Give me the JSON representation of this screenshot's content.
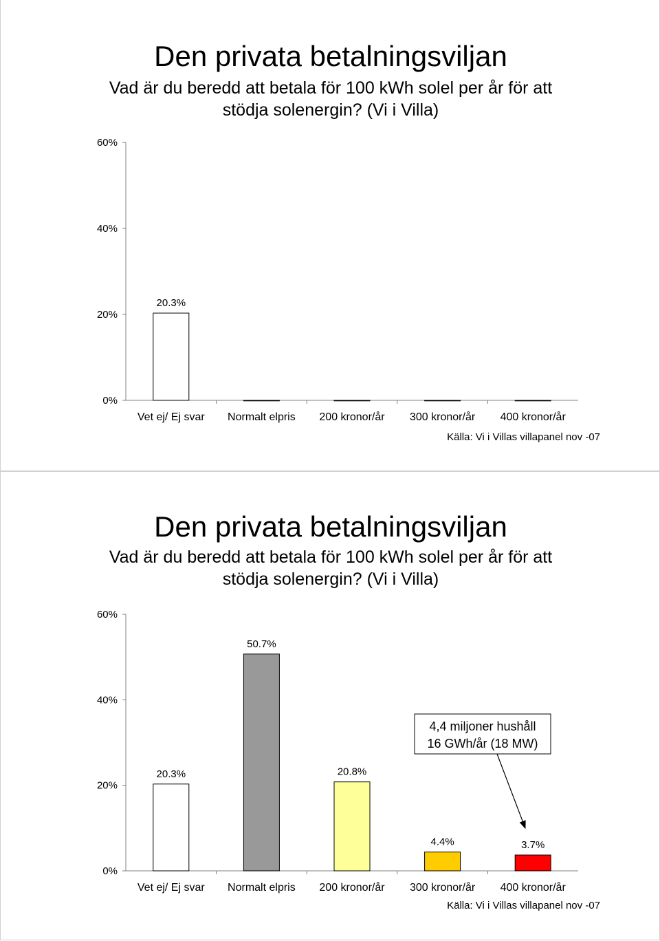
{
  "slides": [
    {
      "title": "Den privata betalningsviljan",
      "subtitle": "Vad är du beredd att betala för 100 kWh solel per år för att stödja solenergin? (Vi i Villa)",
      "source": "Källa: Vi i Villas villapanel nov  -07",
      "annotation": ""
    },
    {
      "title": "Den privata betalningsviljan",
      "subtitle": "Vad är du beredd att betala för 100 kWh solel per år för att stödja solenergin? (Vi i Villa)",
      "source": "Källa: Vi i Villas villapanel nov  -07",
      "annotation": "4,4 miljoner hushåll\n16 GWh/år (18 MW)"
    }
  ],
  "chart_data": [
    {
      "type": "bar",
      "categories": [
        "Vet ej/ Ej svar",
        "Normalt elpris",
        "200 kronor/år",
        "300 kronor/år",
        "400 kronor/år"
      ],
      "values": [
        20.3,
        0,
        0,
        0,
        0
      ],
      "data_labels": [
        "20.3%",
        "",
        "",
        "",
        ""
      ],
      "colors": [
        "#ffffff",
        "#999999",
        "#ffff99",
        "#ffcc00",
        "#ff0000"
      ],
      "yticks": [
        "0%",
        "20%",
        "40%",
        "60%"
      ],
      "ylim": [
        0,
        60
      ],
      "title": "Den privata betalningsviljan",
      "xlabel": "",
      "ylabel": ""
    },
    {
      "type": "bar",
      "categories": [
        "Vet ej/ Ej svar",
        "Normalt elpris",
        "200 kronor/år",
        "300 kronor/år",
        "400 kronor/år"
      ],
      "values": [
        20.3,
        50.7,
        20.8,
        4.4,
        3.7
      ],
      "data_labels": [
        "20.3%",
        "50.7%",
        "20.8%",
        "4.4%",
        "3.7%"
      ],
      "colors": [
        "#ffffff",
        "#999999",
        "#ffff99",
        "#ffcc00",
        "#ff0000"
      ],
      "yticks": [
        "0%",
        "20%",
        "40%",
        "60%"
      ],
      "ylim": [
        0,
        60
      ],
      "title": "Den privata betalningsviljan",
      "xlabel": "",
      "ylabel": ""
    }
  ]
}
